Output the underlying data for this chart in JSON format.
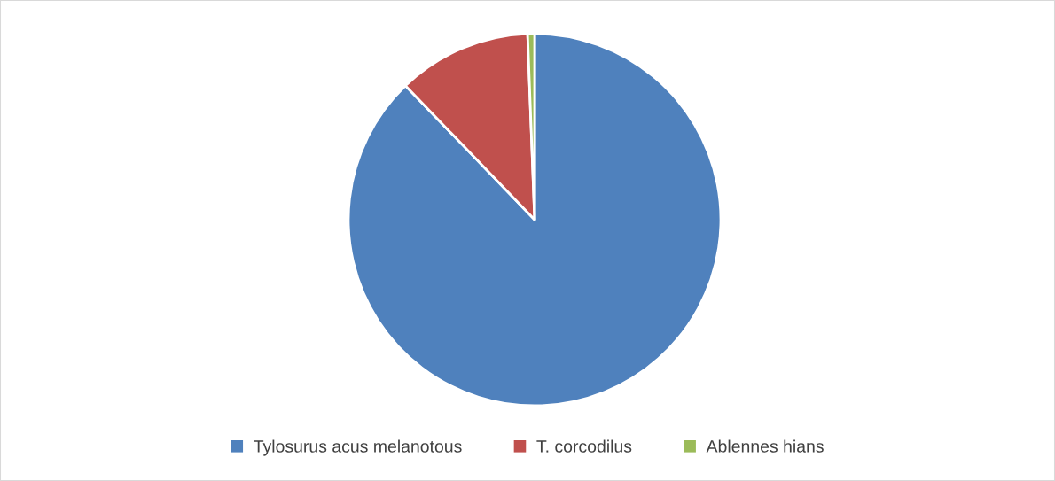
{
  "chart_data": {
    "type": "pie",
    "categories": [
      "Tylosurus acus melanotous",
      "T. corcodilus",
      "Ablennes hians"
    ],
    "values": [
      87.8,
      11.6,
      0.6
    ],
    "colors": [
      "#4f81bd",
      "#c0504d",
      "#9bbb59"
    ],
    "legend": "bottom"
  }
}
